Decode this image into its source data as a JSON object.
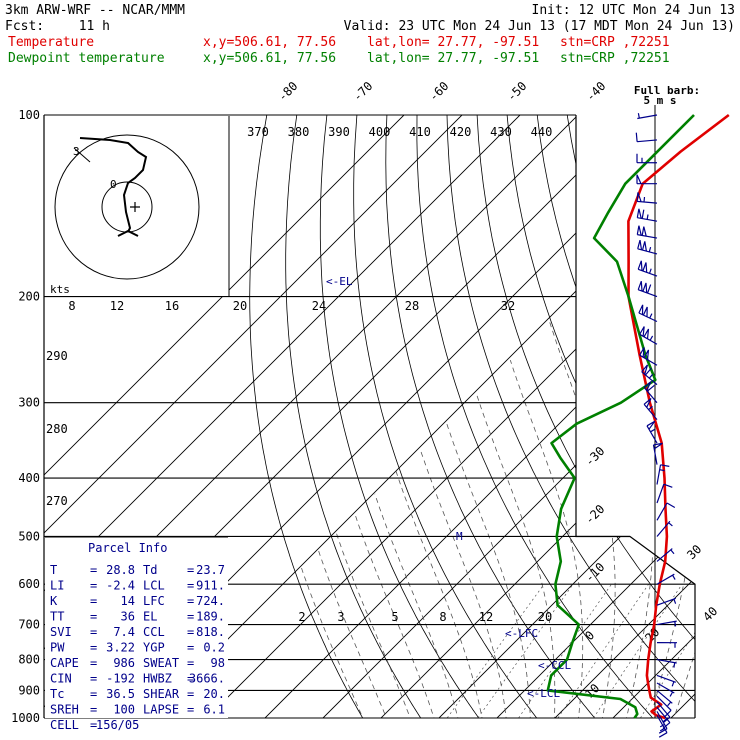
{
  "header": {
    "model": "3km ARW-WRF -- NCAR/MMM",
    "init": "Init: 12 UTC Mon 24 Jun 13",
    "fcst_label": "Fcst:",
    "fcst_value": "11 h",
    "valid": "Valid: 23 UTC Mon 24 Jun 13 (17 MDT Mon 24 Jun 13)",
    "temp_label": "Temperature",
    "dew_label": "Dewpoint temperature",
    "xy": "x,y=506.61, 77.56",
    "latlon": "lat,lon= 27.77, -97.51",
    "stn": "stn=CRP ,72251",
    "barb_title": "Full barb:",
    "barb_value": "5 m s",
    "kts_label": "kts"
  },
  "colors": {
    "temperature": "#e00000",
    "dewpoint": "#008000",
    "barbs": "#00008b",
    "grid": "#000000"
  },
  "chart_data": {
    "type": "line",
    "title": "",
    "y_axis": "pressure (hPa), log scale",
    "ylim": [
      1000,
      100
    ],
    "pressure_ticks": [
      "100",
      "200",
      "300",
      "400",
      "500",
      "600",
      "700",
      "800",
      "900",
      "1000"
    ],
    "isotherm_labels": [
      "-80",
      "-70",
      "-60",
      "-50",
      "-40",
      "-30",
      "-20",
      "-10",
      "0",
      "10",
      "20",
      "30",
      "40"
    ],
    "theta_e_labels": [
      "370",
      "380",
      "390",
      "400",
      "410",
      "420",
      "430",
      "440"
    ],
    "theta_labels": [
      "290",
      "280",
      "270"
    ],
    "mixing_ratio_labels": [
      "2",
      "3",
      "5",
      "8",
      "12",
      "20"
    ],
    "hodo_speed_labels": [
      "8",
      "12",
      "16",
      "20",
      "24",
      "28",
      "32"
    ],
    "series": [
      {
        "name": "Temperature",
        "unit": "°C",
        "points": [
          [
            1000,
            29
          ],
          [
            990,
            27
          ],
          [
            975,
            25.5
          ],
          [
            950,
            26
          ],
          [
            925,
            23
          ],
          [
            900,
            21.5
          ],
          [
            875,
            20
          ],
          [
            850,
            18.5
          ],
          [
            800,
            16
          ],
          [
            750,
            13.5
          ],
          [
            700,
            11
          ],
          [
            650,
            8
          ],
          [
            600,
            5
          ],
          [
            550,
            2
          ],
          [
            500,
            -2
          ],
          [
            450,
            -7
          ],
          [
            400,
            -12.5
          ],
          [
            350,
            -19
          ],
          [
            300,
            -28
          ],
          [
            250,
            -38
          ],
          [
            200,
            -50
          ],
          [
            175,
            -56
          ],
          [
            150,
            -63
          ],
          [
            130,
            -67
          ],
          [
            115,
            -66
          ],
          [
            100,
            -64
          ]
        ]
      },
      {
        "name": "Dewpoint temperature",
        "unit": "°C",
        "points": [
          [
            1000,
            23.7
          ],
          [
            985,
            23.5
          ],
          [
            960,
            22
          ],
          [
            930,
            18
          ],
          [
            900,
            4
          ],
          [
            850,
            2
          ],
          [
            800,
            2
          ],
          [
            750,
            0
          ],
          [
            700,
            -2
          ],
          [
            650,
            -9
          ],
          [
            600,
            -13
          ],
          [
            550,
            -16
          ],
          [
            500,
            -21
          ],
          [
            450,
            -25
          ],
          [
            400,
            -28
          ],
          [
            370,
            -34
          ],
          [
            350,
            -38
          ],
          [
            325,
            -37
          ],
          [
            300,
            -33
          ],
          [
            275,
            -31
          ],
          [
            250,
            -37
          ],
          [
            200,
            -50
          ],
          [
            175,
            -58
          ],
          [
            160,
            -66
          ],
          [
            145,
            -68
          ],
          [
            130,
            -70
          ],
          [
            115,
            -70
          ],
          [
            100,
            -70
          ]
        ]
      }
    ],
    "annotations": [
      "<-EL",
      "<-LFC",
      "<-CCL",
      "<-LCL",
      "M"
    ]
  },
  "parcel_info": {
    "title": "Parcel Info",
    "rows": [
      [
        "T",
        "=",
        "28.8",
        "Td",
        "=",
        "23.7"
      ],
      [
        "LI",
        "=",
        "-2.4",
        "LCL",
        "=",
        "911."
      ],
      [
        "K",
        "=",
        "14",
        "LFC",
        "=",
        "724."
      ],
      [
        "TT",
        "=",
        "36",
        "EL",
        "=",
        "189."
      ],
      [
        "SVI",
        "=",
        "7.4",
        "CCL",
        "=",
        "818."
      ],
      [
        "PW",
        "=",
        "3.22",
        "YGP",
        "=",
        "0.2"
      ],
      [
        "CAPE",
        "=",
        "986",
        "SWEAT",
        "=",
        "98"
      ],
      [
        "CIN",
        "=",
        "-192",
        "HWBZ",
        "=",
        "3666."
      ],
      [
        "Tc",
        "=",
        "36.5",
        "SHEAR",
        "=",
        "20."
      ],
      [
        "SREH",
        "=",
        "100",
        "LAPSE",
        "=",
        "6.1"
      ],
      [
        "CELL",
        "=",
        "156/05",
        "",
        "",
        ""
      ]
    ]
  },
  "wind_barbs": [
    {
      "p": 990,
      "dir": 150,
      "spd": 8
    },
    {
      "p": 975,
      "dir": 150,
      "spd": 8
    },
    {
      "p": 960,
      "dir": 140,
      "spd": 7
    },
    {
      "p": 940,
      "dir": 140,
      "spd": 6
    },
    {
      "p": 920,
      "dir": 135,
      "spd": 5
    },
    {
      "p": 900,
      "dir": 130,
      "spd": 4
    },
    {
      "p": 875,
      "dir": 120,
      "spd": 3
    },
    {
      "p": 850,
      "dir": 110,
      "spd": 3
    },
    {
      "p": 800,
      "dir": 100,
      "spd": 2
    },
    {
      "p": 750,
      "dir": 90,
      "spd": 2
    },
    {
      "p": 700,
      "dir": 80,
      "spd": 2
    },
    {
      "p": 650,
      "dir": 70,
      "spd": 2
    },
    {
      "p": 600,
      "dir": 60,
      "spd": 3
    },
    {
      "p": 550,
      "dir": 50,
      "spd": 3
    },
    {
      "p": 500,
      "dir": 40,
      "spd": 4
    },
    {
      "p": 470,
      "dir": 30,
      "spd": 5
    },
    {
      "p": 440,
      "dir": 20,
      "spd": 6
    },
    {
      "p": 410,
      "dir": 10,
      "spd": 8
    },
    {
      "p": 380,
      "dir": 350,
      "spd": 10
    },
    {
      "p": 350,
      "dir": 330,
      "spd": 12
    },
    {
      "p": 320,
      "dir": 320,
      "spd": 14
    },
    {
      "p": 300,
      "dir": 320,
      "spd": 16
    },
    {
      "p": 280,
      "dir": 310,
      "spd": 18
    },
    {
      "p": 260,
      "dir": 300,
      "spd": 20
    },
    {
      "p": 240,
      "dir": 300,
      "spd": 22
    },
    {
      "p": 220,
      "dir": 295,
      "spd": 24
    },
    {
      "p": 200,
      "dir": 290,
      "spd": 25
    },
    {
      "p": 185,
      "dir": 290,
      "spd": 24
    },
    {
      "p": 170,
      "dir": 285,
      "spd": 22
    },
    {
      "p": 160,
      "dir": 280,
      "spd": 20
    },
    {
      "p": 150,
      "dir": 280,
      "spd": 18
    },
    {
      "p": 140,
      "dir": 275,
      "spd": 14
    },
    {
      "p": 130,
      "dir": 270,
      "spd": 10
    },
    {
      "p": 120,
      "dir": 270,
      "spd": 7
    },
    {
      "p": 110,
      "dir": 265,
      "spd": 5
    },
    {
      "p": 100,
      "dir": 260,
      "spd": 3
    }
  ]
}
